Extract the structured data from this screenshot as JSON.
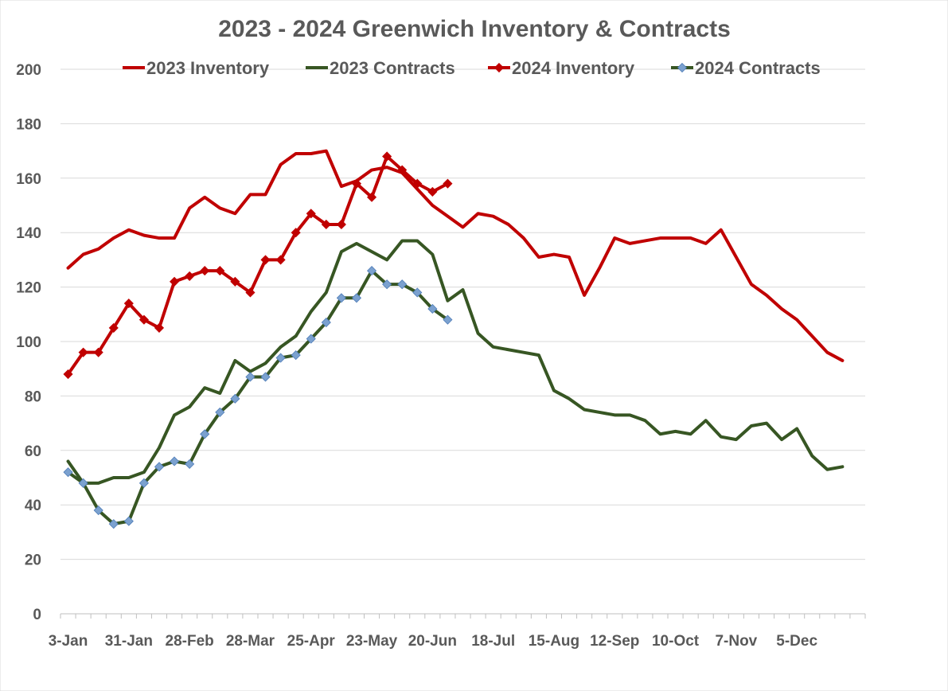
{
  "chart_data": {
    "type": "line",
    "title": "2023 -  2024 Greenwich Inventory & Contracts",
    "xlabel": "",
    "ylabel": "",
    "ylim": [
      0,
      200
    ],
    "yticks": [
      0,
      20,
      40,
      60,
      80,
      100,
      120,
      140,
      160,
      180,
      200
    ],
    "grid": true,
    "legend_position": "top",
    "x_tick_labels": [
      "3-Jan",
      "31-Jan",
      "28-Feb",
      "28-Mar",
      "25-Apr",
      "23-May",
      "20-Jun",
      "18-Jul",
      "15-Aug",
      "12-Sep",
      "10-Oct",
      "7-Nov",
      "5-Dec"
    ],
    "x_tick_label_weeks": [
      0,
      4,
      8,
      12,
      16,
      20,
      24,
      28,
      32,
      36,
      40,
      44,
      48
    ],
    "weeks_count": 53,
    "series": [
      {
        "name": "2023 Inventory",
        "color": "#C00000",
        "marker": "none",
        "values": [
          127,
          132,
          134,
          138,
          141,
          139,
          138,
          138,
          149,
          153,
          149,
          147,
          154,
          154,
          165,
          169,
          169,
          170,
          157,
          159,
          163,
          164,
          162,
          156,
          150,
          146,
          142,
          147,
          146,
          143,
          138,
          131,
          132,
          131,
          117,
          127,
          138,
          136,
          137,
          138,
          138,
          138,
          136,
          141,
          131,
          121,
          117,
          112,
          108,
          102,
          96,
          93
        ]
      },
      {
        "name": "2023 Contracts",
        "color": "#375623",
        "marker": "none",
        "values": [
          56,
          48,
          48,
          50,
          50,
          52,
          61,
          73,
          76,
          83,
          81,
          93,
          89,
          92,
          98,
          102,
          111,
          118,
          133,
          136,
          133,
          130,
          137,
          137,
          132,
          115,
          119,
          103,
          98,
          97,
          96,
          95,
          82,
          79,
          75,
          74,
          73,
          73,
          71,
          66,
          67,
          66,
          71,
          65,
          64,
          69,
          70,
          64,
          68,
          58,
          53,
          54
        ]
      },
      {
        "name": "2024 Inventory",
        "color": "#C00000",
        "marker": "diamond",
        "marker_color": "#C00000",
        "values": [
          88,
          96,
          96,
          105,
          114,
          108,
          105,
          122,
          124,
          126,
          126,
          122,
          118,
          130,
          130,
          140,
          147,
          143,
          143,
          158,
          153,
          168,
          163,
          158,
          155,
          158
        ]
      },
      {
        "name": "2024 Contracts",
        "color": "#375623",
        "marker": "diamond",
        "marker_color": "#7BA1CF",
        "values": [
          52,
          48,
          38,
          33,
          34,
          48,
          54,
          56,
          55,
          66,
          74,
          79,
          87,
          87,
          94,
          95,
          101,
          107,
          116,
          116,
          126,
          121,
          121,
          118,
          112,
          108
        ]
      }
    ]
  }
}
